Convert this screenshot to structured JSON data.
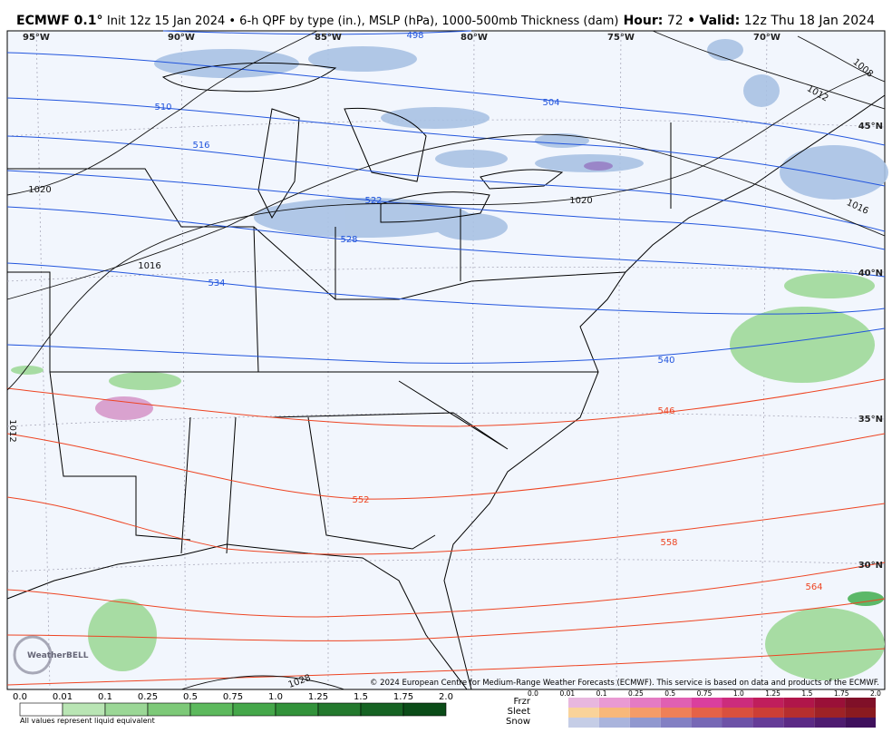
{
  "header": {
    "title": "ECMWF 0.1°",
    "subtitle": "Init 12z 15 Jan 2024 • 6-h QPF by type (in.), MSLP (hPa), 1000-500mb Thickness (dam)",
    "hour_label": "Hour:",
    "hour": "72",
    "separator": "•",
    "valid_label": "Valid:",
    "valid": "12z Thu 18 Jan 2024"
  },
  "map": {
    "longitudes": [
      "95°W",
      "90°W",
      "85°W",
      "80°W",
      "75°W",
      "70°W"
    ],
    "latitudes": [
      "45°N",
      "40°N",
      "35°N",
      "30°N"
    ],
    "thickness_labels": [
      "498",
      "504",
      "510",
      "516",
      "522",
      "528",
      "534",
      "540",
      "546",
      "552",
      "558",
      "564"
    ],
    "pressure_labels": [
      "1008",
      "1012",
      "1016",
      "1020",
      "1016",
      "1020",
      "1012",
      "1028"
    ],
    "credit": "© 2024 European Centre for Medium-Range Weather Forecasts (ECMWF). This service is based on data and products of the ECMWF.",
    "logo": "WeatherBELL"
  },
  "legend": {
    "rain_ticks": [
      "0.0",
      "0.01",
      "0.1",
      "0.25",
      "0.5",
      "0.75",
      "1.0",
      "1.25",
      "1.5",
      "1.75",
      "2.0"
    ],
    "note": "All values represent liquid equivalent",
    "types": [
      "Frzr",
      "Sleet",
      "Snow"
    ],
    "mix_ticks": [
      "0.0",
      "0.01",
      "0.1",
      "0.25",
      "0.5",
      "0.75",
      "1.0",
      "1.25",
      "1.5",
      "1.75",
      "2.0"
    ]
  }
}
